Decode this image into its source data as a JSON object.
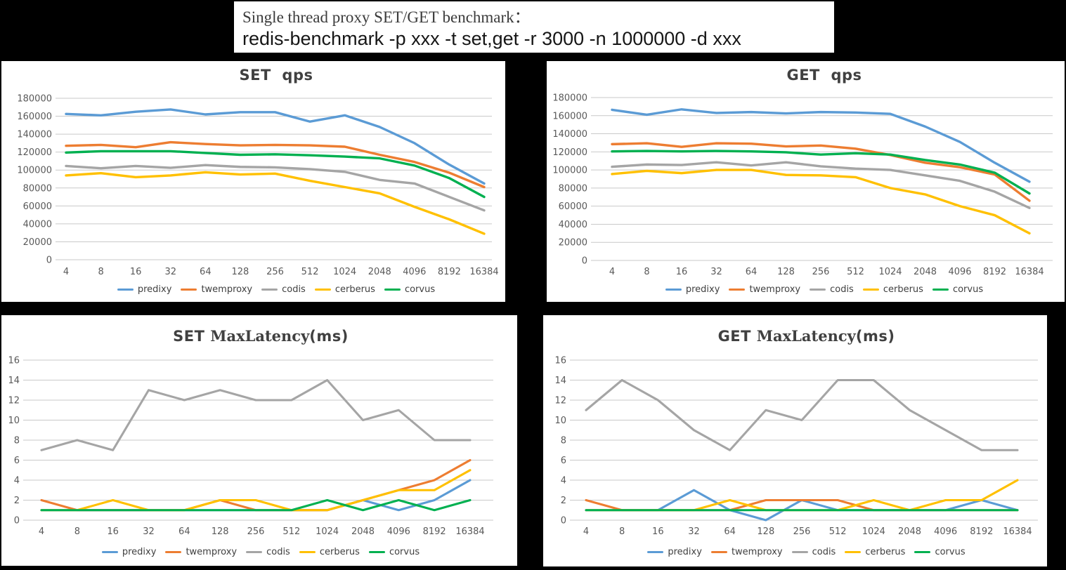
{
  "header": {
    "title_line1": "Single thread proxy SET/GET benchmark：",
    "title_line2": "redis-benchmark -p xxx -t set,get -r 3000 -n 1000000 -d xxx"
  },
  "colors": {
    "predixy": "#5B9BD5",
    "twemproxy": "#ED7D31",
    "codis": "#A5A5A5",
    "cerberus": "#FFC000",
    "corvus": "#00B050",
    "grid": "#C9C9C9",
    "axis_text": "#595959",
    "title_text": "#404040",
    "panel_bg": "#FFFFFF",
    "canvas_bg": "#000000"
  },
  "legend_labels": [
    "predixy",
    "twemproxy",
    "codis",
    "cerberus",
    "corvus"
  ],
  "chart_data": [
    {
      "id": "set-qps",
      "type": "line",
      "title": "SET  qps",
      "title_parts": [
        {
          "text": "SET  qps",
          "font": "sans-bold"
        }
      ],
      "ylim": [
        0,
        180000
      ],
      "ystep": 20000,
      "grid": true,
      "legend_position": "bottom",
      "y_ticks": [
        "180000",
        "160000",
        "140000",
        "120000",
        "100000",
        "80000",
        "60000",
        "40000",
        "20000",
        "0"
      ],
      "categories": [
        "4",
        "8",
        "16",
        "32",
        "64",
        "128",
        "256",
        "512",
        "1024",
        "2048",
        "4096",
        "8192",
        "16384"
      ],
      "series": [
        {
          "name": "predixy",
          "color": "#5B9BD5",
          "values": [
            162500,
            161000,
            165000,
            167500,
            162000,
            164500,
            164500,
            154000,
            161000,
            148000,
            130000,
            106000,
            85000
          ]
        },
        {
          "name": "twemproxy",
          "color": "#ED7D31",
          "values": [
            127000,
            128000,
            125500,
            131000,
            129000,
            127500,
            128000,
            127500,
            126000,
            117000,
            109000,
            97000,
            81000
          ]
        },
        {
          "name": "codis",
          "color": "#A5A5A5",
          "values": [
            104500,
            102000,
            104500,
            102500,
            105500,
            103500,
            103000,
            101000,
            98000,
            89000,
            85000,
            70000,
            55000
          ]
        },
        {
          "name": "cerberus",
          "color": "#FFC000",
          "values": [
            94000,
            96500,
            92000,
            94000,
            97500,
            95000,
            96000,
            88000,
            81000,
            74000,
            59000,
            45000,
            29000
          ]
        },
        {
          "name": "corvus",
          "color": "#00B050",
          "values": [
            119500,
            121000,
            121000,
            121000,
            119000,
            117000,
            117500,
            116500,
            115000,
            113000,
            105000,
            91000,
            70000
          ]
        }
      ]
    },
    {
      "id": "get-qps",
      "type": "line",
      "title": "GET  qps",
      "title_parts": [
        {
          "text": "GET  qps",
          "font": "sans-bold"
        }
      ],
      "ylim": [
        0,
        180000
      ],
      "ystep": 20000,
      "grid": true,
      "legend_position": "bottom",
      "y_ticks": [
        "180000",
        "160000",
        "140000",
        "120000",
        "100000",
        "80000",
        "60000",
        "40000",
        "20000",
        "0"
      ],
      "categories": [
        "4",
        "8",
        "16",
        "32",
        "64",
        "128",
        "256",
        "512",
        "1024",
        "2048",
        "4096",
        "8192",
        "16384"
      ],
      "series": [
        {
          "name": "predixy",
          "color": "#5B9BD5",
          "values": [
            166500,
            161000,
            167000,
            163000,
            164000,
            162500,
            164000,
            163500,
            162000,
            148000,
            131000,
            108000,
            87000
          ]
        },
        {
          "name": "twemproxy",
          "color": "#ED7D31",
          "values": [
            128500,
            129500,
            125500,
            129500,
            129000,
            126000,
            127000,
            123500,
            116500,
            108000,
            103000,
            95000,
            66000
          ]
        },
        {
          "name": "codis",
          "color": "#A5A5A5",
          "values": [
            103500,
            106000,
            105500,
            108500,
            105000,
            108500,
            104000,
            101500,
            100000,
            94000,
            88000,
            76000,
            58000
          ]
        },
        {
          "name": "cerberus",
          "color": "#FFC000",
          "values": [
            95500,
            99000,
            96500,
            100000,
            100000,
            94500,
            94000,
            92000,
            80000,
            73000,
            60000,
            50000,
            30000
          ]
        },
        {
          "name": "corvus",
          "color": "#00B050",
          "values": [
            120500,
            121000,
            120500,
            121000,
            120500,
            119500,
            117000,
            118500,
            117000,
            111000,
            106000,
            97000,
            74000
          ]
        }
      ]
    },
    {
      "id": "set-maxlatency",
      "type": "line",
      "title": "SET MaxLatency(ms)",
      "title_parts": [
        {
          "text": "SET ",
          "font": "sans-bold"
        },
        {
          "text": "MaxLatency",
          "font": "serif"
        },
        {
          "text": "(ms)",
          "font": "sans-bold"
        }
      ],
      "ylim": [
        0,
        16
      ],
      "ystep": 2,
      "grid": true,
      "legend_position": "bottom",
      "y_ticks": [
        "16",
        "14",
        "12",
        "10",
        "8",
        "6",
        "4",
        "2",
        "0"
      ],
      "categories": [
        "4",
        "8",
        "16",
        "32",
        "64",
        "128",
        "256",
        "512",
        "1024",
        "2048",
        "4096",
        "8192",
        "16384"
      ],
      "series": [
        {
          "name": "predixy",
          "color": "#5B9BD5",
          "values": [
            1,
            1,
            1,
            1,
            1,
            1,
            1,
            1,
            1,
            2,
            1,
            2,
            4
          ]
        },
        {
          "name": "twemproxy",
          "color": "#ED7D31",
          "values": [
            2,
            1,
            1,
            1,
            1,
            2,
            1,
            1,
            1,
            2,
            3,
            4,
            6
          ]
        },
        {
          "name": "codis",
          "color": "#A5A5A5",
          "values": [
            7,
            8,
            7,
            13,
            12,
            13,
            12,
            12,
            14,
            10,
            11,
            8,
            8
          ]
        },
        {
          "name": "cerberus",
          "color": "#FFC000",
          "values": [
            1,
            1,
            2,
            1,
            1,
            2,
            2,
            1,
            1,
            2,
            3,
            3,
            5
          ]
        },
        {
          "name": "corvus",
          "color": "#00B050",
          "values": [
            1,
            1,
            1,
            1,
            1,
            1,
            1,
            1,
            2,
            1,
            2,
            1,
            2
          ]
        }
      ]
    },
    {
      "id": "get-maxlatency",
      "type": "line",
      "title": "GET MaxLatency(ms)",
      "title_parts": [
        {
          "text": "GET ",
          "font": "sans-bold"
        },
        {
          "text": "MaxLatency",
          "font": "serif"
        },
        {
          "text": "(ms)",
          "font": "sans-bold"
        }
      ],
      "ylim": [
        0,
        16
      ],
      "ystep": 2,
      "grid": true,
      "legend_position": "bottom",
      "y_ticks": [
        "16",
        "14",
        "12",
        "10",
        "8",
        "6",
        "4",
        "2",
        "0"
      ],
      "categories": [
        "4",
        "8",
        "16",
        "32",
        "64",
        "128",
        "256",
        "512",
        "1024",
        "2048",
        "4096",
        "8192",
        "16384"
      ],
      "series": [
        {
          "name": "predixy",
          "color": "#5B9BD5",
          "values": [
            1,
            1,
            1,
            3,
            1,
            0,
            2,
            1,
            1,
            1,
            1,
            2,
            1
          ]
        },
        {
          "name": "twemproxy",
          "color": "#ED7D31",
          "values": [
            2,
            1,
            1,
            1,
            1,
            2,
            2,
            2,
            1,
            1,
            1,
            1,
            1
          ]
        },
        {
          "name": "codis",
          "color": "#A5A5A5",
          "values": [
            11,
            14,
            12,
            9,
            7,
            11,
            10,
            14,
            14,
            11,
            9,
            7,
            7
          ]
        },
        {
          "name": "cerberus",
          "color": "#FFC000",
          "values": [
            1,
            1,
            1,
            1,
            2,
            1,
            1,
            1,
            2,
            1,
            2,
            2,
            4
          ]
        },
        {
          "name": "corvus",
          "color": "#00B050",
          "values": [
            1,
            1,
            1,
            1,
            1,
            1,
            1,
            1,
            1,
            1,
            1,
            1,
            1
          ]
        }
      ]
    }
  ]
}
